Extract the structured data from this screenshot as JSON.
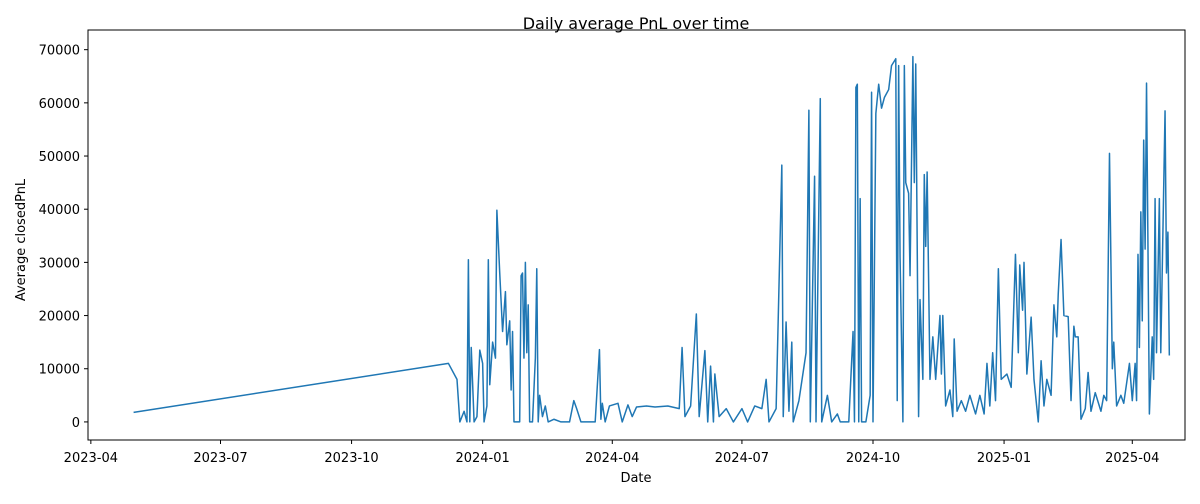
{
  "chart_data": {
    "type": "line",
    "title": "Daily average PnL over time",
    "x_label": "Date",
    "y_label": "Average closedPnL",
    "color": "#1f77b4",
    "x": [
      "2023-05-01",
      "2023-12-08",
      "2023-12-14",
      "2023-12-16",
      "2023-12-19",
      "2023-12-21",
      "2023-12-22",
      "2023-12-23",
      "2023-12-24",
      "2023-12-26",
      "2023-12-28",
      "2023-12-30",
      "2024-01-01",
      "2024-01-02",
      "2024-01-04",
      "2024-01-05",
      "2024-01-06",
      "2024-01-08",
      "2024-01-10",
      "2024-01-11",
      "2024-01-13",
      "2024-01-15",
      "2024-01-17",
      "2024-01-18",
      "2024-01-20",
      "2024-01-21",
      "2024-01-22",
      "2024-01-23",
      "2024-01-27",
      "2024-01-28",
      "2024-01-29",
      "2024-01-30",
      "2024-01-31",
      "2024-02-01",
      "2024-02-02",
      "2024-02-03",
      "2024-02-05",
      "2024-02-07",
      "2024-02-08",
      "2024-02-09",
      "2024-02-10",
      "2024-02-12",
      "2024-02-14",
      "2024-02-16",
      "2024-02-20",
      "2024-02-25",
      "2024-03-02",
      "2024-03-05",
      "2024-03-07",
      "2024-03-10",
      "2024-03-20",
      "2024-03-23",
      "2024-03-24",
      "2024-03-25",
      "2024-03-27",
      "2024-03-30",
      "2024-04-05",
      "2024-04-08",
      "2024-04-12",
      "2024-04-15",
      "2024-04-18",
      "2024-04-25",
      "2024-05-01",
      "2024-05-10",
      "2024-05-18",
      "2024-05-20",
      "2024-05-22",
      "2024-05-26",
      "2024-05-30",
      "2024-06-01",
      "2024-06-05",
      "2024-06-07",
      "2024-06-09",
      "2024-06-11",
      "2024-06-12",
      "2024-06-15",
      "2024-06-20",
      "2024-06-25",
      "2024-07-01",
      "2024-07-05",
      "2024-07-10",
      "2024-07-15",
      "2024-07-18",
      "2024-07-20",
      "2024-07-25",
      "2024-07-29",
      "2024-07-30",
      "2024-08-01",
      "2024-08-03",
      "2024-08-05",
      "2024-08-06",
      "2024-08-10",
      "2024-08-15",
      "2024-08-17",
      "2024-08-18",
      "2024-08-21",
      "2024-08-22",
      "2024-08-25",
      "2024-08-26",
      "2024-08-30",
      "2024-09-02",
      "2024-09-06",
      "2024-09-08",
      "2024-09-14",
      "2024-09-17",
      "2024-09-18",
      "2024-09-19",
      "2024-09-20",
      "2024-09-21",
      "2024-09-22",
      "2024-09-23",
      "2024-09-26",
      "2024-09-29",
      "2024-09-30",
      "2024-10-01",
      "2024-10-03",
      "2024-10-05",
      "2024-10-07",
      "2024-10-09",
      "2024-10-12",
      "2024-10-14",
      "2024-10-17",
      "2024-10-18",
      "2024-10-19",
      "2024-10-20",
      "2024-10-22",
      "2024-10-23",
      "2024-10-24",
      "2024-10-26",
      "2024-10-27",
      "2024-10-29",
      "2024-10-30",
      "2024-10-31",
      "2024-11-02",
      "2024-11-03",
      "2024-11-05",
      "2024-11-06",
      "2024-11-07",
      "2024-11-08",
      "2024-11-10",
      "2024-11-12",
      "2024-11-14",
      "2024-11-17",
      "2024-11-18",
      "2024-11-19",
      "2024-11-21",
      "2024-11-24",
      "2024-11-26",
      "2024-11-27",
      "2024-11-29",
      "2024-12-02",
      "2024-12-05",
      "2024-12-08",
      "2024-12-12",
      "2024-12-15",
      "2024-12-18",
      "2024-12-20",
      "2024-12-22",
      "2024-12-24",
      "2024-12-26",
      "2024-12-28",
      "2024-12-30",
      "2025-01-03",
      "2025-01-06",
      "2025-01-09",
      "2025-01-11",
      "2025-01-12",
      "2025-01-14",
      "2025-01-15",
      "2025-01-17",
      "2025-01-20",
      "2025-01-22",
      "2025-01-25",
      "2025-01-27",
      "2025-01-29",
      "2025-01-31",
      "2025-02-03",
      "2025-02-05",
      "2025-02-07",
      "2025-02-08",
      "2025-02-10",
      "2025-02-12",
      "2025-02-15",
      "2025-02-17",
      "2025-02-19",
      "2025-02-20",
      "2025-02-22",
      "2025-02-24",
      "2025-02-27",
      "2025-03-01",
      "2025-03-03",
      "2025-03-06",
      "2025-03-10",
      "2025-03-12",
      "2025-03-14",
      "2025-03-16",
      "2025-03-18",
      "2025-03-19",
      "2025-03-21",
      "2025-03-24",
      "2025-03-26",
      "2025-03-30",
      "2025-04-01",
      "2025-04-03",
      "2025-04-04",
      "2025-04-05",
      "2025-04-06",
      "2025-04-07",
      "2025-04-08",
      "2025-04-09",
      "2025-04-10",
      "2025-04-11",
      "2025-04-12",
      "2025-04-13",
      "2025-04-15",
      "2025-04-16",
      "2025-04-17",
      "2025-04-18",
      "2025-04-20",
      "2025-04-21",
      "2025-04-24",
      "2025-04-25",
      "2025-04-26",
      "2025-04-27"
    ],
    "values": [
      1800,
      11000,
      8000,
      0,
      2000,
      0,
      30500,
      0,
      14000,
      0,
      1000,
      13500,
      11000,
      0,
      3000,
      30500,
      7000,
      15000,
      12000,
      39800,
      28000,
      17000,
      24500,
      14500,
      19000,
      6000,
      17000,
      0,
      0,
      27500,
      28000,
      12000,
      30000,
      13000,
      22000,
      0,
      0,
      12000,
      28800,
      0,
      5000,
      1000,
      3000,
      0,
      500,
      0,
      0,
      4000,
      2500,
      0,
      0,
      13600,
      500,
      3500,
      0,
      3000,
      3500,
      0,
      3200,
      1000,
      2800,
      3000,
      2800,
      3000,
      2500,
      14000,
      1000,
      3000,
      20300,
      1000,
      13400,
      0,
      10500,
      0,
      9000,
      1000,
      2500,
      0,
      2500,
      0,
      3000,
      2500,
      8000,
      0,
      2500,
      48300,
      1000,
      18800,
      2000,
      15000,
      0,
      4000,
      13000,
      58600,
      0,
      46200,
      0,
      60800,
      0,
      5000,
      0,
      1500,
      0,
      0,
      17000,
      0,
      62900,
      63500,
      0,
      42000,
      0,
      0,
      5000,
      62000,
      0,
      58000,
      63500,
      59000,
      61000,
      62500,
      67000,
      68300,
      4000,
      67000,
      31000,
      0,
      67000,
      45000,
      43000,
      27500,
      68700,
      45000,
      67300,
      1000,
      23000,
      8000,
      46500,
      33000,
      47000,
      8000,
      16000,
      8000,
      20000,
      9000,
      20000,
      3000,
      6000,
      1000,
      15600,
      2000,
      4000,
      2000,
      5000,
      1500,
      5000,
      1500,
      11000,
      3000,
      13000,
      4000,
      28800,
      8000,
      9000,
      6500,
      31500,
      13000,
      29500,
      21000,
      30000,
      9000,
      19700,
      8000,
      0,
      11500,
      3000,
      8000,
      5000,
      22000,
      16000,
      23900,
      34300,
      20000,
      19800,
      4000,
      18000,
      16000,
      16000,
      500,
      2500,
      9300,
      2000,
      5500,
      2000,
      5000,
      4000,
      50500,
      10000,
      15000,
      3000,
      5000,
      3500,
      11000,
      4000,
      11000,
      4000,
      31500,
      14000,
      39500,
      19000,
      53000,
      32500,
      63700,
      33000,
      1500,
      16000,
      8000,
      42000,
      13000,
      42000,
      13000,
      58500,
      28000,
      35700,
      12500
    ],
    "xlim": [
      "2023-03-30",
      "2025-05-08"
    ],
    "xticks": [
      {
        "value": "2023-04-01",
        "label": "2023-04"
      },
      {
        "value": "2023-07-01",
        "label": "2023-07"
      },
      {
        "value": "2023-10-01",
        "label": "2023-10"
      },
      {
        "value": "2024-01-01",
        "label": "2024-01"
      },
      {
        "value": "2024-04-01",
        "label": "2024-04"
      },
      {
        "value": "2024-07-01",
        "label": "2024-07"
      },
      {
        "value": "2024-10-01",
        "label": "2024-10"
      },
      {
        "value": "2025-01-01",
        "label": "2025-01"
      },
      {
        "value": "2025-04-01",
        "label": "2025-04"
      }
    ],
    "ylim": [
      -3400,
      73700
    ],
    "yticks": [
      0,
      10000,
      20000,
      30000,
      40000,
      50000,
      60000,
      70000
    ]
  }
}
